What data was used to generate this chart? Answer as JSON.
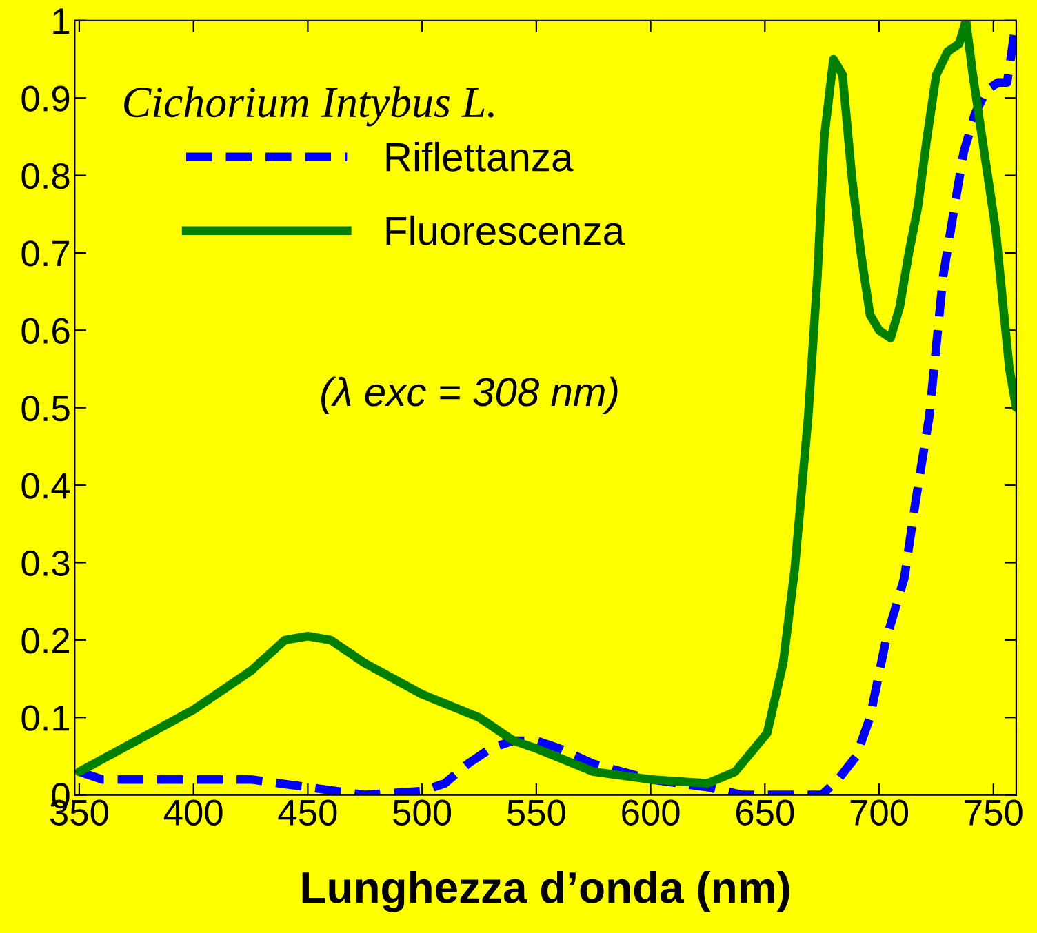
{
  "chart_data": {
    "type": "line",
    "xlabel": "Lunghezza d’onda (nm)",
    "xlim": [
      348,
      760
    ],
    "xticks": [
      350,
      400,
      450,
      500,
      550,
      600,
      650,
      700,
      750
    ],
    "ylim": [
      0,
      1
    ],
    "yticks": [
      0,
      0.1,
      0.2,
      0.3,
      0.4,
      0.5,
      0.6,
      0.7,
      0.8,
      0.9,
      1
    ],
    "grid": false,
    "legend": "top left",
    "marker": "none",
    "annotations": [
      "Cichorium Intybus L.",
      "(λ exc = 308 nm)"
    ],
    "series": [
      {
        "name": "Riflettanza",
        "color": "#0000ff",
        "line_style": "dashed",
        "x": [
          350,
          360,
          380,
          400,
          425,
          450,
          475,
          500,
          510,
          520,
          530,
          540,
          550,
          560,
          575,
          600,
          625,
          640,
          660,
          675,
          682,
          690,
          696,
          703,
          711,
          716,
          722,
          728,
          733,
          737,
          742,
          747,
          752,
          756,
          760
        ],
        "values": [
          0.03,
          0.02,
          0.02,
          0.02,
          0.02,
          0.01,
          0.0,
          0.005,
          0.015,
          0.04,
          0.06,
          0.07,
          0.07,
          0.06,
          0.04,
          0.02,
          0.01,
          0.0,
          0.0,
          0.0,
          0.02,
          0.05,
          0.1,
          0.2,
          0.28,
          0.38,
          0.49,
          0.67,
          0.76,
          0.83,
          0.88,
          0.91,
          0.92,
          0.92,
          1.0
        ]
      },
      {
        "name": "Fluorescenza",
        "color": "#007f00",
        "line_style": "solid",
        "x": [
          350,
          375,
          400,
          425,
          440,
          450,
          460,
          475,
          500,
          525,
          540,
          550,
          575,
          600,
          625,
          637,
          651,
          658,
          663,
          669,
          673,
          676,
          680,
          684,
          688,
          692,
          696,
          700,
          705,
          709,
          713,
          717,
          721,
          725,
          730,
          735,
          738,
          741,
          745,
          751,
          757,
          760
        ],
        "values": [
          0.03,
          0.07,
          0.11,
          0.16,
          0.2,
          0.205,
          0.2,
          0.17,
          0.13,
          0.1,
          0.07,
          0.06,
          0.03,
          0.02,
          0.015,
          0.03,
          0.08,
          0.17,
          0.29,
          0.49,
          0.67,
          0.85,
          0.95,
          0.93,
          0.8,
          0.7,
          0.62,
          0.6,
          0.59,
          0.63,
          0.7,
          0.76,
          0.85,
          0.93,
          0.96,
          0.97,
          1.0,
          0.93,
          0.85,
          0.73,
          0.55,
          0.5
        ]
      }
    ]
  }
}
